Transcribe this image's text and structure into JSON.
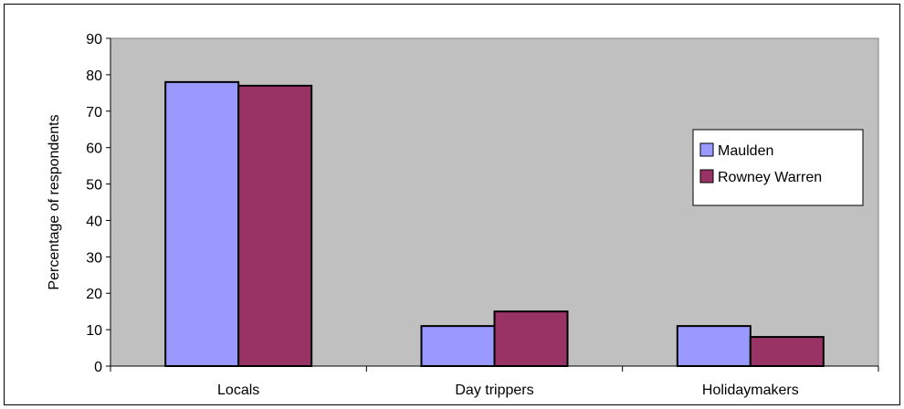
{
  "chart_data": {
    "type": "bar",
    "title": "",
    "xlabel": "",
    "ylabel": "Percentage of respondents",
    "ylim": [
      0,
      90
    ],
    "yticks": [
      0,
      10,
      20,
      30,
      40,
      50,
      60,
      70,
      80,
      90
    ],
    "categories": [
      "Locals",
      "Day trippers",
      "Holidaymakers"
    ],
    "series": [
      {
        "name": "Maulden",
        "values": [
          78,
          11,
          11
        ],
        "color": "#9999ff"
      },
      {
        "name": "Rowney Warren",
        "values": [
          77,
          15,
          8
        ],
        "color": "#993366"
      }
    ],
    "plot_background": "#c0c0c0",
    "grid": false,
    "legend_position": "right"
  }
}
